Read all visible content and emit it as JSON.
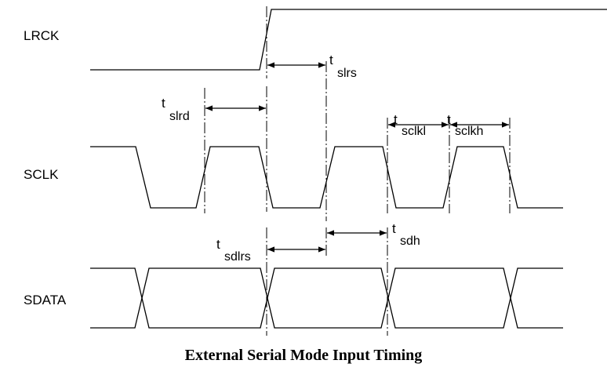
{
  "signals": [
    "LRCK",
    "SCLK",
    "SDATA"
  ],
  "timings": [
    {
      "symbol": "t",
      "subscript": "slrs"
    },
    {
      "symbol": "t",
      "subscript": "slrd"
    },
    {
      "symbol": "t",
      "subscript": "sclkl"
    },
    {
      "symbol": "t",
      "subscript": "sclkh"
    },
    {
      "symbol": "t",
      "subscript": "sdlrs"
    },
    {
      "symbol": "t",
      "subscript": "sdh"
    }
  ],
  "caption": "External Serial Mode Input Timing"
}
